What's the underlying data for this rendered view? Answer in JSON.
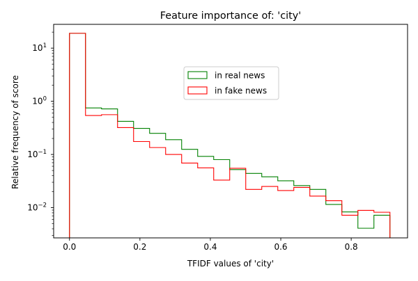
{
  "chart_data": {
    "type": "step-histogram",
    "title": "Feature importance of: 'city'",
    "xlabel": "TFIDF values of 'city'",
    "ylabel": "Relative frequency of score",
    "xlim": [
      -0.045,
      0.96
    ],
    "ylim": [
      0.0027,
      28
    ],
    "yscale": "log",
    "grid": false,
    "legend_position": "upper-center",
    "x_ticks": [
      {
        "value": 0.0,
        "label": "0.0"
      },
      {
        "value": 0.2,
        "label": "0.2"
      },
      {
        "value": 0.4,
        "label": "0.4"
      },
      {
        "value": 0.6,
        "label": "0.6"
      },
      {
        "value": 0.8,
        "label": "0.8"
      }
    ],
    "y_ticks": [
      {
        "value": 0.01,
        "base": "10",
        "exp": "−2"
      },
      {
        "value": 0.1,
        "base": "10",
        "exp": "−1"
      },
      {
        "value": 1,
        "base": "10",
        "exp": "0"
      },
      {
        "value": 10,
        "base": "10",
        "exp": "1"
      }
    ],
    "series": [
      {
        "name": "in real news",
        "color": "#008000",
        "edges": [
          0.0,
          0.0455,
          0.091,
          0.1365,
          0.182,
          0.2275,
          0.273,
          0.3185,
          0.364,
          0.4095,
          0.455,
          0.5005,
          0.546,
          0.5915,
          0.637,
          0.6825,
          0.728,
          0.7735,
          0.819,
          0.8645,
          0.91
        ],
        "values": [
          19.0,
          0.75,
          0.72,
          0.42,
          0.31,
          0.25,
          0.19,
          0.125,
          0.092,
          0.08,
          0.052,
          0.044,
          0.038,
          0.032,
          0.026,
          0.022,
          0.0115,
          0.0083,
          0.0041,
          0.0072
        ]
      },
      {
        "name": "in fake news",
        "color": "#ff0000",
        "edges": [
          0.0,
          0.0455,
          0.091,
          0.1365,
          0.182,
          0.2275,
          0.273,
          0.3185,
          0.364,
          0.4095,
          0.455,
          0.5005,
          0.546,
          0.5915,
          0.637,
          0.6825,
          0.728,
          0.7735,
          0.819,
          0.8645,
          0.91
        ],
        "values": [
          19.0,
          0.54,
          0.56,
          0.32,
          0.175,
          0.135,
          0.1,
          0.069,
          0.056,
          0.033,
          0.055,
          0.022,
          0.025,
          0.021,
          0.024,
          0.0165,
          0.0135,
          0.0072,
          0.0089,
          0.0082
        ]
      }
    ]
  }
}
